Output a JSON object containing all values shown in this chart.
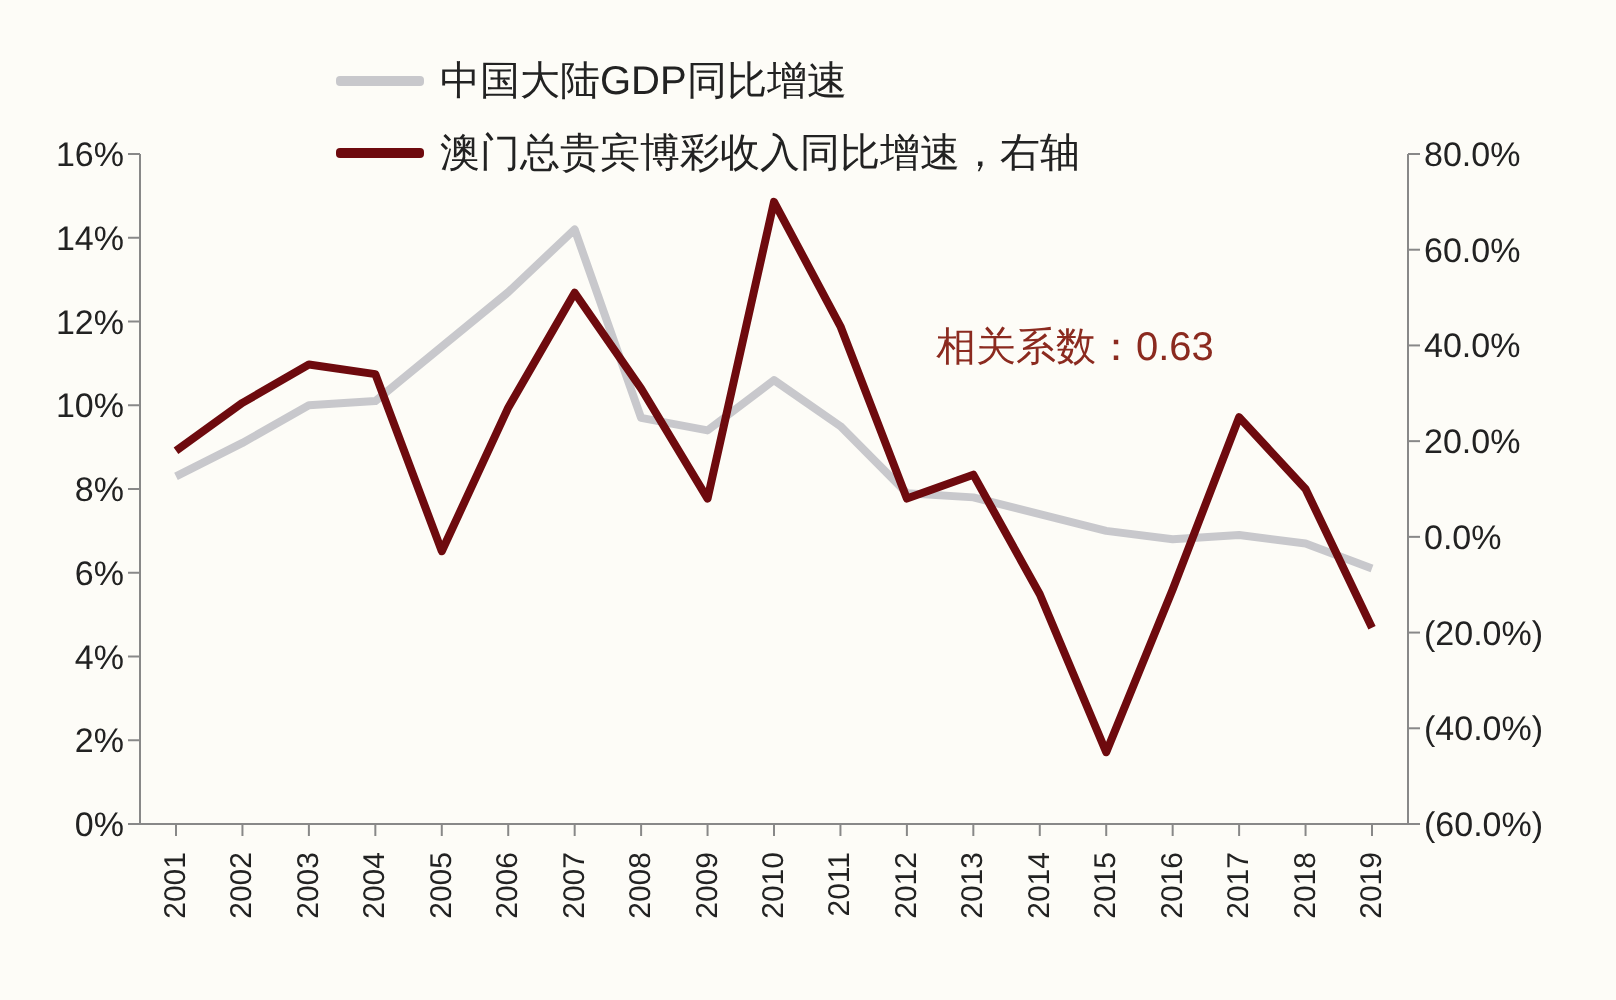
{
  "chart_data": {
    "type": "line",
    "categories": [
      "2001",
      "2002",
      "2003",
      "2004",
      "2005",
      "2006",
      "2007",
      "2008",
      "2009",
      "2010",
      "2011",
      "2012",
      "2013",
      "2014",
      "2015",
      "2016",
      "2017",
      "2018",
      "2019"
    ],
    "series": [
      {
        "name": "中国大陆GDP同比增速",
        "color": "#c8c8cc",
        "values": [
          8.3,
          9.1,
          10.0,
          10.1,
          11.4,
          12.7,
          14.2,
          9.7,
          9.4,
          10.6,
          9.5,
          7.9,
          7.8,
          7.4,
          7.0,
          6.8,
          6.9,
          6.7,
          6.1
        ]
      },
      {
        "name": "澳门总贵宾博彩收入同比增速，右轴",
        "color": "#6e0a0e",
        "axis": "y2",
        "values": [
          18,
          28,
          36,
          34,
          -3,
          27,
          51,
          31,
          8,
          70,
          44,
          8,
          13,
          -12,
          -45,
          -11,
          25,
          10,
          -19
        ]
      }
    ],
    "ylim": [
      0,
      16
    ],
    "yticks": [
      {
        "value": 0,
        "label": "0%"
      },
      {
        "value": 2,
        "label": "2%"
      },
      {
        "value": 4,
        "label": "4%"
      },
      {
        "value": 6,
        "label": "6%"
      },
      {
        "value": 8,
        "label": "8%"
      },
      {
        "value": 10,
        "label": "10%"
      },
      {
        "value": 12,
        "label": "12%"
      },
      {
        "value": 14,
        "label": "14%"
      },
      {
        "value": 16,
        "label": "16%"
      }
    ],
    "y2lim": [
      -60,
      80
    ],
    "y2ticks": [
      {
        "value": -60,
        "label": "(60.0%)"
      },
      {
        "value": -40,
        "label": "(40.0%)"
      },
      {
        "value": -20,
        "label": "(20.0%)"
      },
      {
        "value": 0,
        "label": "0.0%"
      },
      {
        "value": 20,
        "label": "20.0%"
      },
      {
        "value": 40,
        "label": "40.0%"
      },
      {
        "value": 60,
        "label": "60.0%"
      },
      {
        "value": 80,
        "label": "80.0%"
      }
    ],
    "annotations": [
      "相关系数：0.63"
    ],
    "legend": "top",
    "grid": false,
    "marker": "none",
    "line_style": "solid"
  }
}
